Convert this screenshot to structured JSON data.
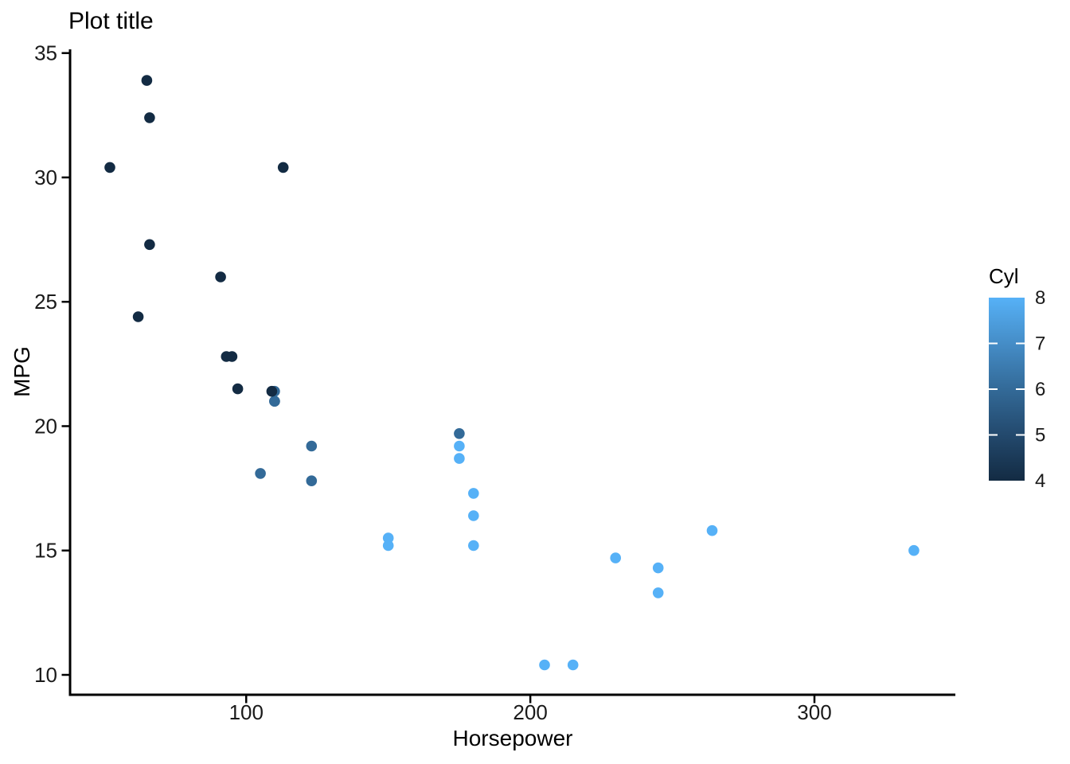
{
  "chart_data": {
    "type": "scatter",
    "title": "Plot title",
    "xlabel": "Horsepower",
    "ylabel": "MPG",
    "xlim": [
      38,
      349.6
    ],
    "ylim": [
      9.2,
      35.15
    ],
    "x_ticks": [
      100,
      200,
      300
    ],
    "y_ticks": [
      10,
      15,
      20,
      25,
      30,
      35
    ],
    "grid": false,
    "axis_color": "#000000",
    "point_color_map": {
      "4": "#132B43",
      "6": "#336A98",
      "8": "#56B1F7"
    },
    "legend": {
      "title": "Cyl",
      "position": "right",
      "type": "continuous_gradient",
      "domain": [
        4,
        8
      ],
      "tick_labels": [
        8,
        7,
        6,
        5,
        4
      ],
      "inner_ticks": [
        5,
        6,
        7
      ],
      "gradient_stops": [
        "#56B1F7",
        "#458DC7",
        "#336A98",
        "#23496D",
        "#132B43"
      ]
    },
    "points": [
      {
        "hp": 110,
        "mpg": 21.0,
        "cyl": 6
      },
      {
        "hp": 110,
        "mpg": 21.0,
        "cyl": 6
      },
      {
        "hp": 93,
        "mpg": 22.8,
        "cyl": 4
      },
      {
        "hp": 110,
        "mpg": 21.4,
        "cyl": 6
      },
      {
        "hp": 175,
        "mpg": 18.7,
        "cyl": 8
      },
      {
        "hp": 105,
        "mpg": 18.1,
        "cyl": 6
      },
      {
        "hp": 245,
        "mpg": 14.3,
        "cyl": 8
      },
      {
        "hp": 62,
        "mpg": 24.4,
        "cyl": 4
      },
      {
        "hp": 95,
        "mpg": 22.8,
        "cyl": 4
      },
      {
        "hp": 123,
        "mpg": 19.2,
        "cyl": 6
      },
      {
        "hp": 123,
        "mpg": 17.8,
        "cyl": 6
      },
      {
        "hp": 180,
        "mpg": 16.4,
        "cyl": 8
      },
      {
        "hp": 180,
        "mpg": 17.3,
        "cyl": 8
      },
      {
        "hp": 180,
        "mpg": 15.2,
        "cyl": 8
      },
      {
        "hp": 205,
        "mpg": 10.4,
        "cyl": 8
      },
      {
        "hp": 215,
        "mpg": 10.4,
        "cyl": 8
      },
      {
        "hp": 230,
        "mpg": 14.7,
        "cyl": 8
      },
      {
        "hp": 66,
        "mpg": 32.4,
        "cyl": 4
      },
      {
        "hp": 52,
        "mpg": 30.4,
        "cyl": 4
      },
      {
        "hp": 65,
        "mpg": 33.9,
        "cyl": 4
      },
      {
        "hp": 97,
        "mpg": 21.5,
        "cyl": 4
      },
      {
        "hp": 150,
        "mpg": 15.5,
        "cyl": 8
      },
      {
        "hp": 150,
        "mpg": 15.2,
        "cyl": 8
      },
      {
        "hp": 245,
        "mpg": 13.3,
        "cyl": 8
      },
      {
        "hp": 175,
        "mpg": 19.2,
        "cyl": 8
      },
      {
        "hp": 66,
        "mpg": 27.3,
        "cyl": 4
      },
      {
        "hp": 91,
        "mpg": 26.0,
        "cyl": 4
      },
      {
        "hp": 113,
        "mpg": 30.4,
        "cyl": 4
      },
      {
        "hp": 264,
        "mpg": 15.8,
        "cyl": 8
      },
      {
        "hp": 175,
        "mpg": 19.7,
        "cyl": 6
      },
      {
        "hp": 335,
        "mpg": 15.0,
        "cyl": 8
      },
      {
        "hp": 109,
        "mpg": 21.4,
        "cyl": 4
      }
    ]
  }
}
